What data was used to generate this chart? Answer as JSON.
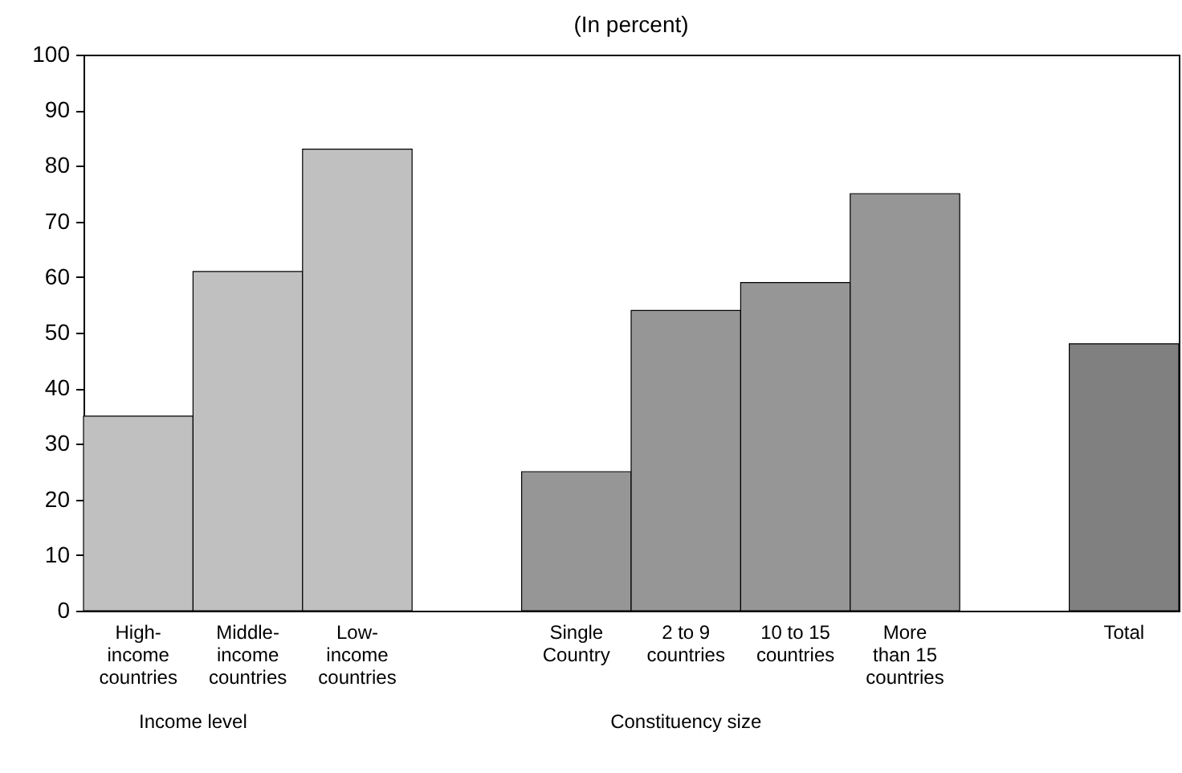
{
  "chart_data": {
    "type": "bar",
    "title": "(In percent)",
    "categories": [
      "High-income countries",
      "Middle-income countries",
      "Low-income countries",
      null,
      "Single Country",
      "2 to 9 countries",
      "10 to 15 countries",
      "More than 15 countries",
      null,
      "Total"
    ],
    "values": [
      35,
      61,
      83,
      null,
      25,
      54,
      59,
      75,
      null,
      48
    ],
    "colors": [
      "#c0c0c0",
      "#c0c0c0",
      "#c0c0c0",
      "#ffffff",
      "#969696",
      "#969696",
      "#969696",
      "#969696",
      "#ffffff",
      "#808080"
    ],
    "ylim": [
      0,
      100
    ],
    "yticks": [
      0,
      10,
      20,
      30,
      40,
      50,
      60,
      70,
      80,
      90,
      100
    ],
    "grid": false,
    "annotations": [
      "Income level",
      "Constituency size"
    ]
  }
}
